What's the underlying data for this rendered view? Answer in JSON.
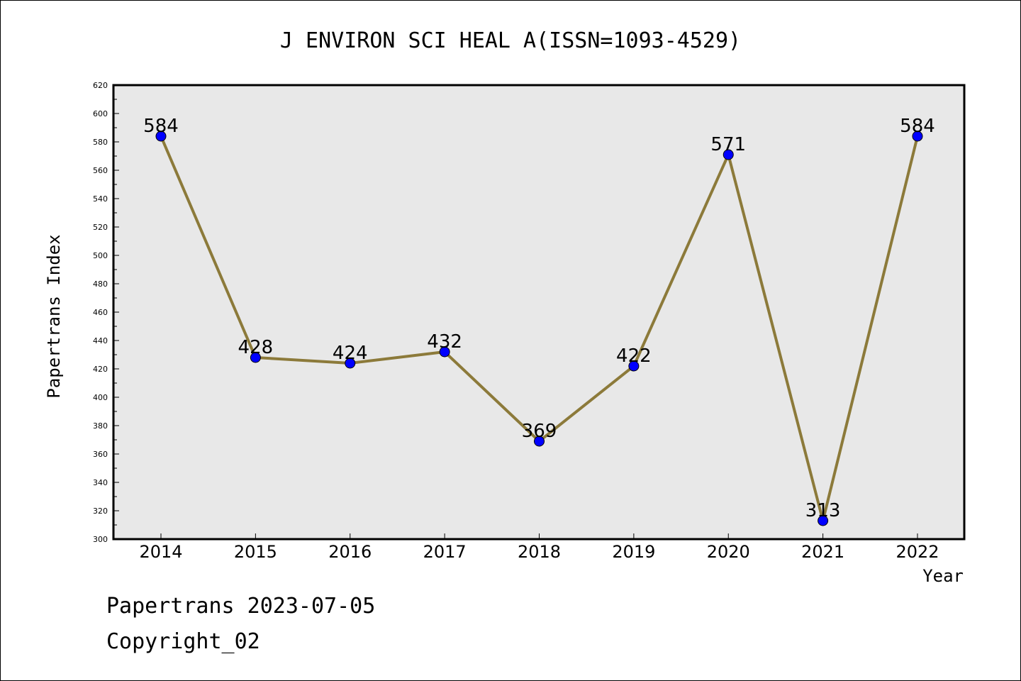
{
  "chart_data": {
    "type": "line",
    "title": "J ENVIRON SCI HEAL A(ISSN=1093-4529)",
    "xlabel": "Year",
    "ylabel": "Papertrans Index",
    "categories": [
      "2014",
      "2015",
      "2016",
      "2017",
      "2018",
      "2019",
      "2020",
      "2021",
      "2022"
    ],
    "series": [
      {
        "values": [
          584,
          428,
          424,
          432,
          369,
          422,
          571,
          313,
          584
        ],
        "line_color": "#8c7a3a",
        "marker_color": "#0000ff"
      }
    ],
    "ylim": [
      300,
      620
    ],
    "y_ticks": [
      300,
      320,
      340,
      360,
      380,
      400,
      420,
      440,
      460,
      480,
      500,
      520,
      540,
      560,
      580,
      600,
      620
    ],
    "data_labels": [
      "584",
      "428",
      "424",
      "432",
      "369",
      "422",
      "571",
      "313",
      "584"
    ],
    "grid": false,
    "plot_background": "#e8e8e8"
  },
  "footer": {
    "line1": "Papertrans 2023-07-05",
    "line2": "Copyright_02"
  }
}
